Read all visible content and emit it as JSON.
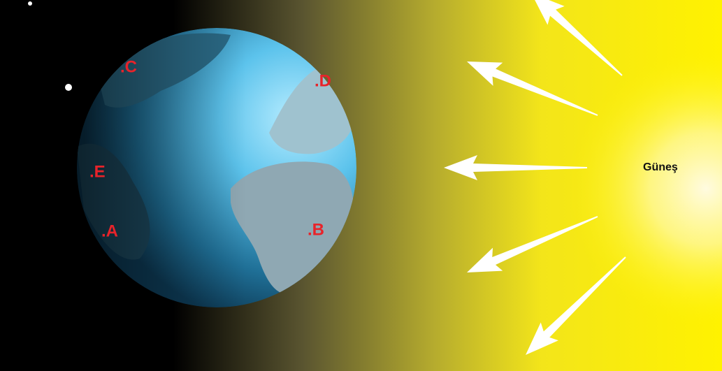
{
  "points": [
    ".C",
    ".D",
    ".E",
    ".A",
    ".B"
  ],
  "sun_label": "Güneş"
}
